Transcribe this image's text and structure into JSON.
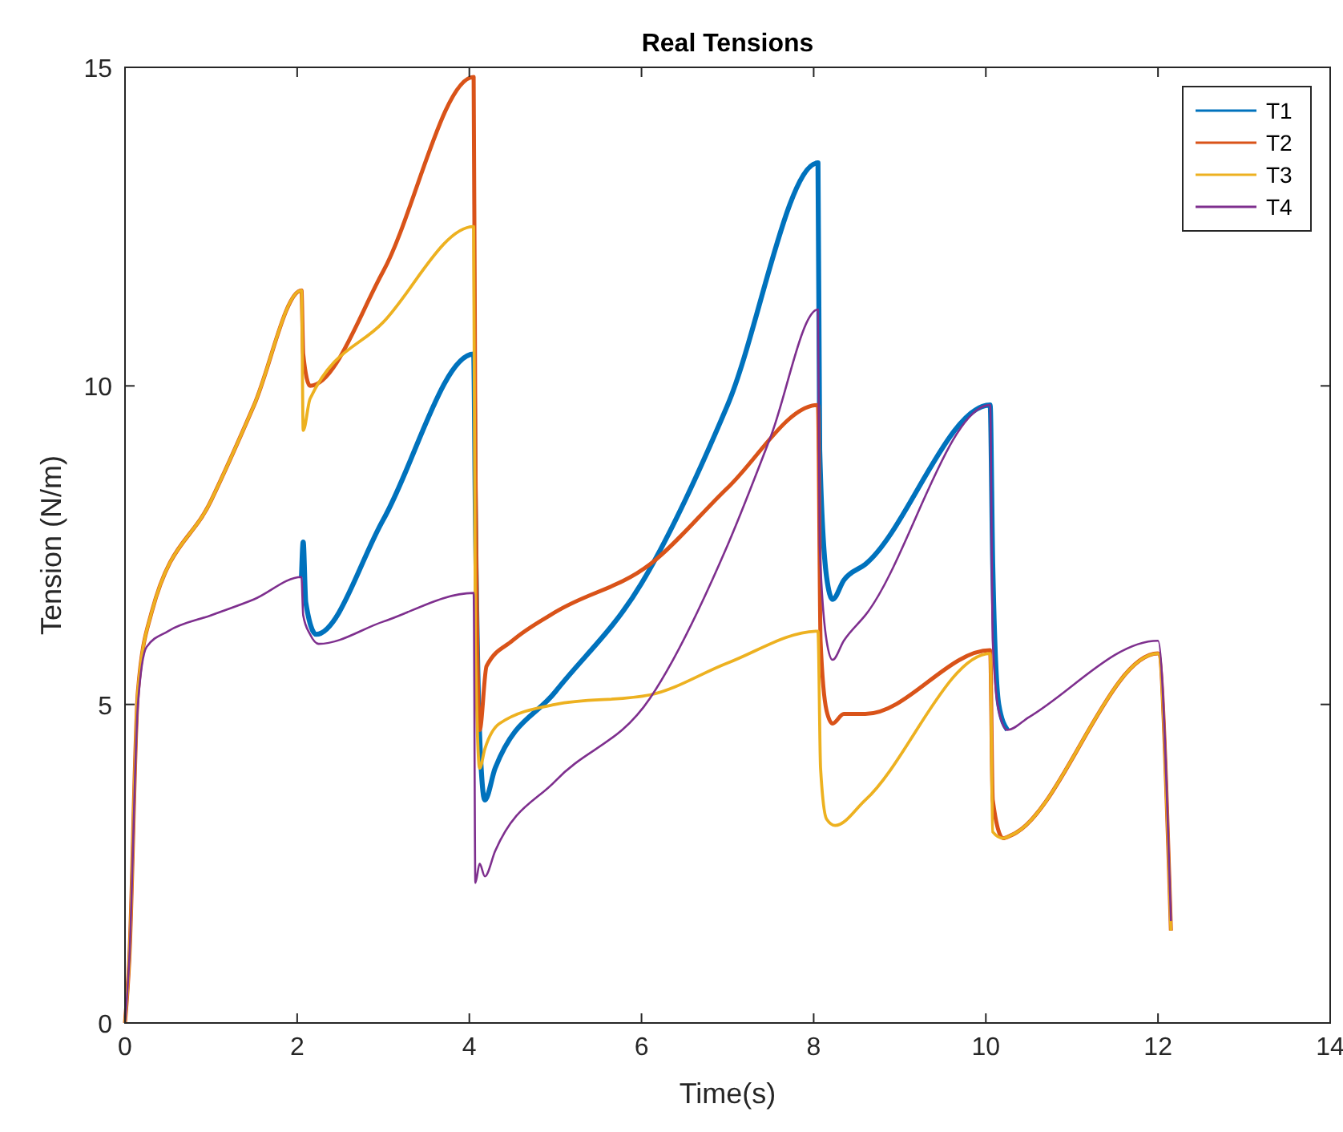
{
  "chart_data": {
    "type": "line",
    "title": "Real Tensions",
    "xlabel": "Time(s)",
    "ylabel": "Tension (N/m)",
    "xlim": [
      0,
      14
    ],
    "xticks": [
      0,
      2,
      4,
      6,
      8,
      10,
      12,
      14
    ],
    "ylim": [
      0,
      15
    ],
    "yticks": [
      0,
      5,
      10,
      15
    ],
    "grid": false,
    "legend": "top right",
    "line_style": "solid",
    "marker": "none",
    "series": [
      {
        "name": "T1",
        "color": "#0072bd",
        "x": [
          2.05,
          2.07,
          2.1,
          2.22,
          3,
          4.05,
          4.07,
          4.12,
          4.18,
          4.3,
          5,
          6,
          7,
          8.05,
          8.07,
          8.15,
          8.22,
          8.35,
          8.6,
          10.05,
          10.08,
          10.15,
          10.25
        ],
        "values": [
          7,
          7.55,
          6.6,
          6.1,
          7.9,
          10.5,
          8,
          4.5,
          3.5,
          4,
          5.2,
          6.9,
          9.7,
          13.5,
          9,
          7,
          6.65,
          6.95,
          7.2,
          9.7,
          7.2,
          5,
          4.6
        ]
      },
      {
        "name": "T2",
        "color": "#d95319",
        "x": [
          0,
          0.05,
          0.15,
          0.3,
          1,
          1.5,
          2.05,
          2.07,
          2.15,
          3,
          4.05,
          4.07,
          4.12,
          4.2,
          4.5,
          5,
          6.1,
          7,
          8.05,
          8.08,
          8.15,
          8.22,
          8.35,
          8.6,
          10.05,
          10.08,
          10.2,
          10.3,
          12,
          12.15
        ],
        "values": [
          0,
          1,
          5.2,
          6.4,
          8.2,
          9.7,
          11.5,
          10.5,
          10,
          11.8,
          14.85,
          9,
          4.6,
          5.6,
          6,
          6.45,
          7.2,
          8.4,
          9.7,
          6,
          4.9,
          4.7,
          4.85,
          4.85,
          5.85,
          3.5,
          2.9,
          2.95,
          5.8,
          1.45
        ]
      },
      {
        "name": "T3",
        "color": "#edb120",
        "x": [
          0,
          0.05,
          0.15,
          0.3,
          1,
          1.5,
          2.05,
          2.07,
          2.15,
          3,
          4.05,
          4.07,
          4.12,
          4.18,
          4.35,
          5,
          6.1,
          7,
          8.05,
          8.08,
          8.15,
          8.25,
          8.6,
          10.05,
          10.08,
          10.2,
          10.3,
          12,
          12.15
        ],
        "values": [
          0,
          1,
          5.2,
          6.4,
          8.2,
          9.7,
          11.5,
          9.3,
          9.8,
          11,
          12.5,
          6,
          4,
          4.3,
          4.7,
          5,
          5.15,
          5.65,
          6.15,
          4,
          3.2,
          3.1,
          3.5,
          5.8,
          3,
          2.9,
          2.95,
          5.8,
          1.45
        ]
      },
      {
        "name": "T4",
        "color": "#7e2f8e",
        "x": [
          0,
          0.05,
          0.15,
          0.25,
          0.5,
          1,
          1.5,
          2.05,
          2.07,
          2.15,
          2.25,
          3,
          4.05,
          4.07,
          4.12,
          4.18,
          4.3,
          5,
          6.1,
          7,
          7.5,
          8.05,
          8.07,
          8.15,
          8.22,
          8.35,
          8.6,
          10.05,
          10.08,
          10.15,
          10.25,
          10.5,
          12,
          12.15
        ],
        "values": [
          0,
          1,
          5,
          5.9,
          6.15,
          6.4,
          6.65,
          7,
          6.4,
          6.1,
          5.95,
          6.3,
          6.75,
          2.2,
          2.5,
          2.3,
          2.7,
          3.8,
          5.1,
          7.5,
          9.2,
          11.2,
          7.5,
          6,
          5.7,
          6,
          6.4,
          9.7,
          6,
          4.9,
          4.6,
          4.8,
          6,
          1.6
        ]
      }
    ]
  }
}
